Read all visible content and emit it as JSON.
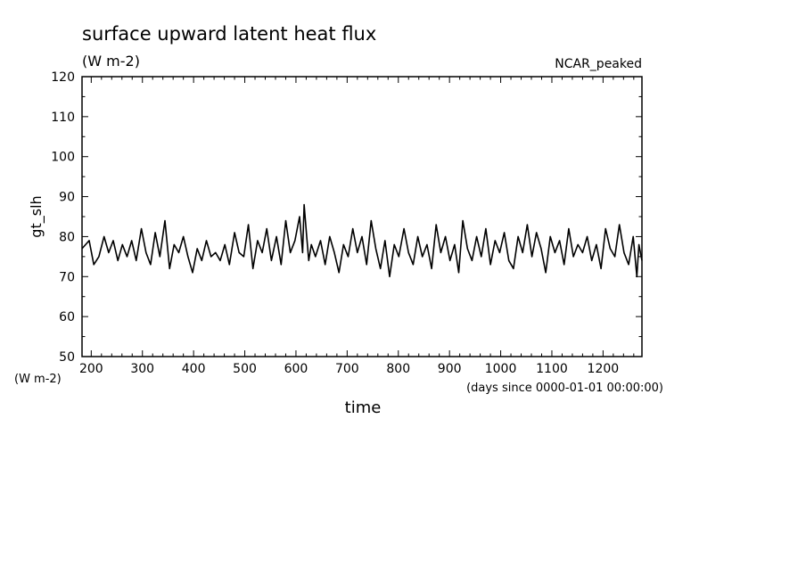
{
  "chart_data": {
    "type": "line",
    "title": "surface upward latent heat flux",
    "units": "(W m-2)",
    "experiment": "NCAR_peaked",
    "xlabel": "time",
    "xunits": "(days since 0000-01-01 00:00:00)",
    "ylabel": "gt_slh",
    "yunits": "(W m-2)",
    "xlim": [
      182,
      1276
    ],
    "ylim": [
      50,
      120
    ],
    "xticks": [
      200,
      300,
      400,
      500,
      600,
      700,
      800,
      900,
      1000,
      1100,
      1200
    ],
    "yticks": [
      50,
      60,
      70,
      80,
      90,
      100,
      110,
      120
    ],
    "grid": false,
    "series": [
      {
        "x": [
          182,
          196,
          205,
          215,
          225,
          234,
          243,
          252,
          261,
          270,
          279,
          288,
          298,
          307,
          316,
          325,
          334,
          344,
          353,
          362,
          371,
          380,
          389,
          398,
          407,
          416,
          425,
          434,
          443,
          452,
          461,
          470,
          480,
          489,
          498,
          507,
          516,
          525,
          534,
          543,
          552,
          562,
          571,
          580,
          589,
          598,
          607,
          613,
          616,
          621,
          625,
          630,
          638,
          648,
          657,
          666,
          675,
          684,
          693,
          702,
          711,
          720,
          729,
          738,
          747,
          756,
          765,
          774,
          783,
          792,
          801,
          811,
          820,
          829,
          838,
          847,
          856,
          865,
          874,
          883,
          892,
          901,
          910,
          918,
          926,
          935,
          944,
          953,
          962,
          971,
          980,
          989,
          998,
          1007,
          1016,
          1025,
          1034,
          1043,
          1052,
          1061,
          1070,
          1079,
          1088,
          1097,
          1106,
          1115,
          1124,
          1133,
          1142,
          1151,
          1160,
          1169,
          1178,
          1187,
          1196,
          1205,
          1214,
          1223,
          1232,
          1241,
          1250,
          1259,
          1266,
          1270,
          1276
        ],
        "y": [
          77,
          79,
          73,
          75,
          80,
          76,
          79,
          74,
          78,
          75,
          79,
          74,
          82,
          76,
          73,
          81,
          75,
          84,
          72,
          78,
          76,
          80,
          75,
          71,
          77,
          74,
          79,
          75,
          76,
          74,
          78,
          73,
          81,
          76,
          75,
          83,
          72,
          79,
          76,
          82,
          74,
          80,
          73,
          84,
          76,
          79,
          85,
          76,
          88,
          80,
          74,
          78,
          75,
          79,
          73,
          80,
          76,
          71,
          78,
          75,
          82,
          76,
          80,
          73,
          84,
          77,
          72,
          79,
          70,
          78,
          75,
          82,
          76,
          73,
          80,
          75,
          78,
          72,
          83,
          76,
          80,
          74,
          78,
          71,
          84,
          77,
          74,
          80,
          75,
          82,
          73,
          79,
          76,
          81,
          74,
          72,
          80,
          76,
          83,
          75,
          81,
          77,
          71,
          80,
          76,
          79,
          73,
          82,
          75,
          78,
          76,
          80,
          74,
          78,
          72,
          82,
          77,
          75,
          83,
          76,
          73,
          80,
          70,
          78,
          74
        ]
      }
    ]
  }
}
